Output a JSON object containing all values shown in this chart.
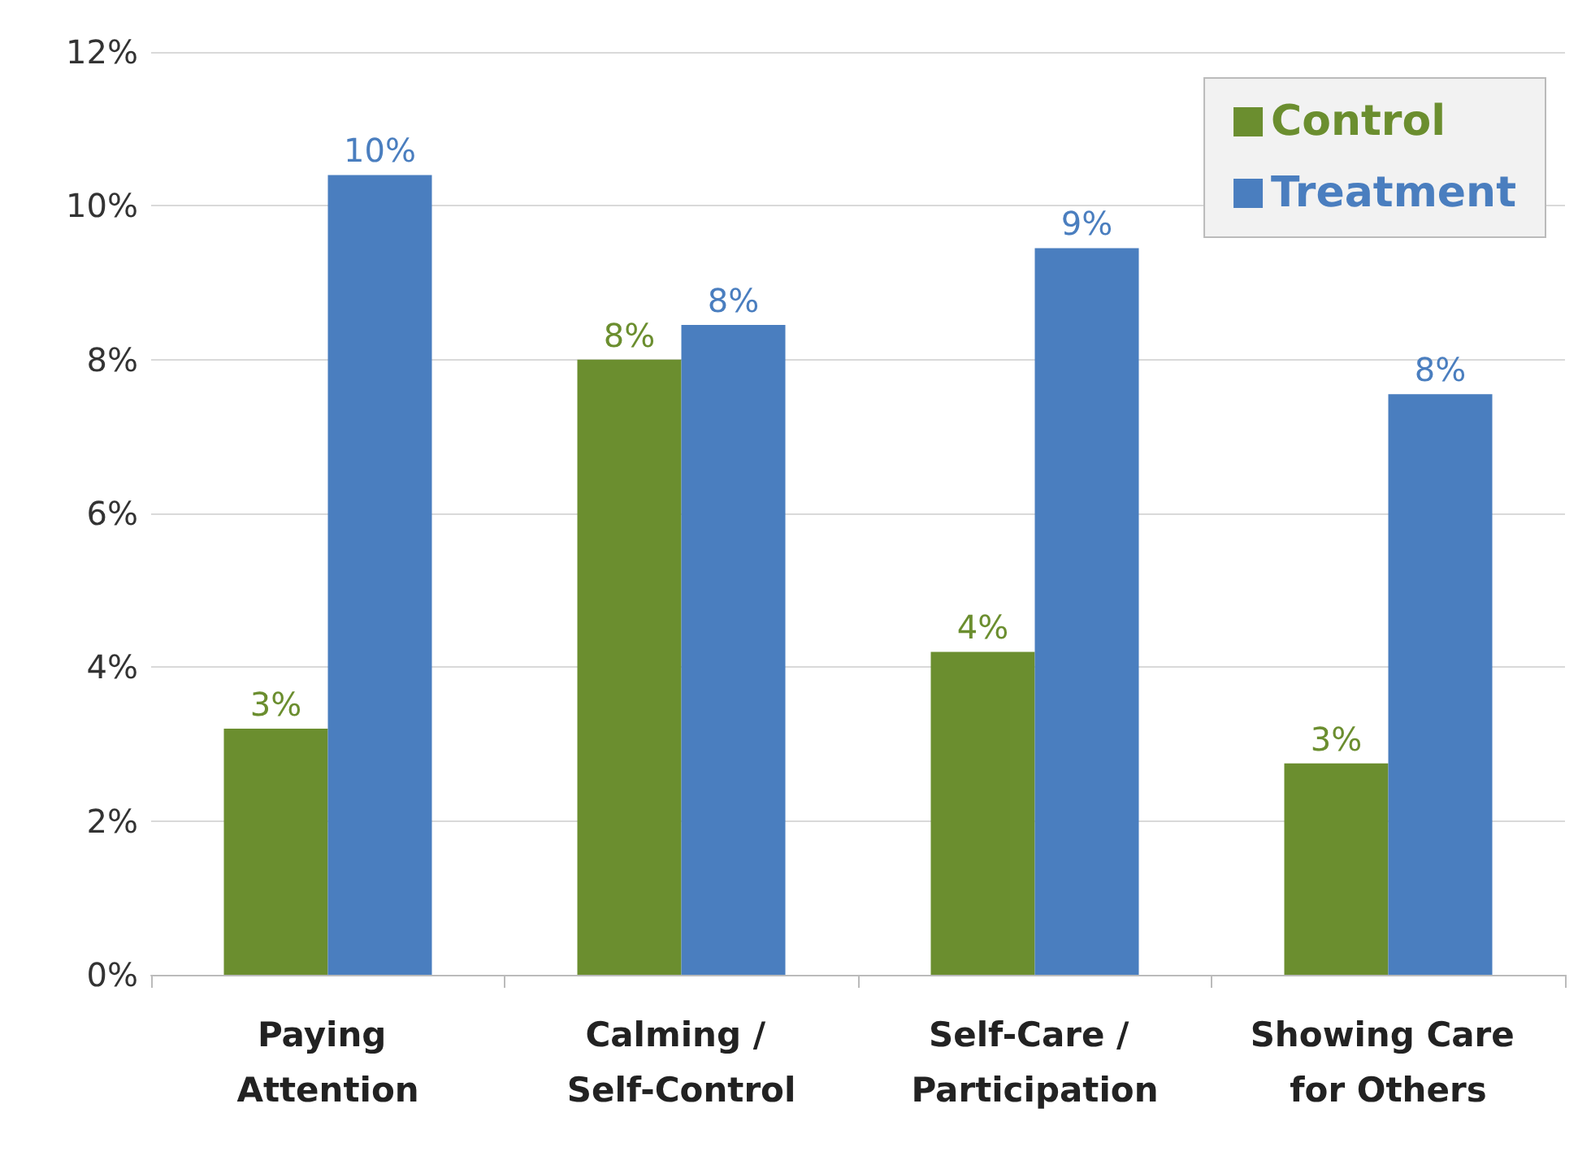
{
  "chart_data": {
    "type": "bar",
    "categories": [
      "Paying Attention",
      "Calming / Self-Control",
      "Self-Care / Participation",
      "Showing Care for Others"
    ],
    "series": [
      {
        "name": "Control",
        "color": "#6b8e2f",
        "values": [
          3.2,
          8.0,
          4.2,
          2.75
        ],
        "value_labels": [
          "3%",
          "8%",
          "4%",
          "3%"
        ]
      },
      {
        "name": "Treatment",
        "color": "#4a7ebf",
        "values": [
          10.4,
          8.45,
          9.45,
          7.55
        ],
        "value_labels": [
          "10%",
          "8%",
          "9%",
          "8%"
        ]
      }
    ],
    "ylim": [
      0,
      12
    ],
    "yticks": [
      {
        "value": 0,
        "label": "0%"
      },
      {
        "value": 2,
        "label": "2%"
      },
      {
        "value": 4,
        "label": "4%"
      },
      {
        "value": 6,
        "label": "6%"
      },
      {
        "value": 8,
        "label": "8%"
      },
      {
        "value": 10,
        "label": "10%"
      },
      {
        "value": 12,
        "label": "12%"
      }
    ],
    "grid": "y",
    "legend": "top right"
  }
}
